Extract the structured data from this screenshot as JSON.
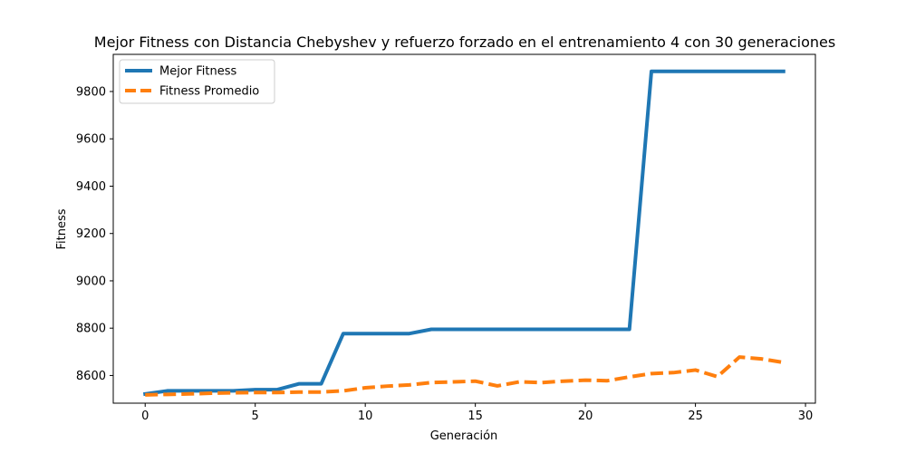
{
  "chart_data": {
    "type": "line",
    "title": "Mejor Fitness con Distancia Chebyshev y refuerzo forzado en el entrenamiento 4 con 30 generaciones",
    "xlabel": "Generación",
    "ylabel": "Fitness",
    "xlim": [
      -1.45,
      30.45
    ],
    "ylim": [
      8483,
      9957
    ],
    "xticks": [
      0,
      5,
      10,
      15,
      20,
      25,
      30
    ],
    "yticks": [
      8600,
      8800,
      9000,
      9200,
      9400,
      9600,
      9800
    ],
    "grid": false,
    "legend_position": "top-left",
    "x": [
      0,
      1,
      2,
      3,
      4,
      5,
      6,
      7,
      8,
      9,
      10,
      11,
      12,
      13,
      14,
      15,
      16,
      17,
      18,
      19,
      20,
      21,
      22,
      23,
      24,
      25,
      26,
      27,
      28,
      29
    ],
    "series": [
      {
        "name": "Mejor Fitness",
        "color": "#1f77b4",
        "style": "solid",
        "values": [
          8522,
          8535,
          8535,
          8535,
          8535,
          8540,
          8540,
          8565,
          8565,
          8777,
          8777,
          8777,
          8777,
          8795,
          8795,
          8795,
          8795,
          8795,
          8795,
          8795,
          8795,
          8795,
          8795,
          9885,
          9885,
          9885,
          9885,
          9885,
          9885,
          9885
        ]
      },
      {
        "name": "Fitness Promedio",
        "color": "#ff7f0e",
        "style": "dashed",
        "values": [
          8518,
          8520,
          8522,
          8525,
          8527,
          8528,
          8528,
          8530,
          8530,
          8535,
          8548,
          8555,
          8560,
          8570,
          8573,
          8576,
          8556,
          8573,
          8570,
          8576,
          8580,
          8578,
          8594,
          8608,
          8612,
          8623,
          8595,
          8678,
          8670,
          8655
        ]
      }
    ]
  }
}
